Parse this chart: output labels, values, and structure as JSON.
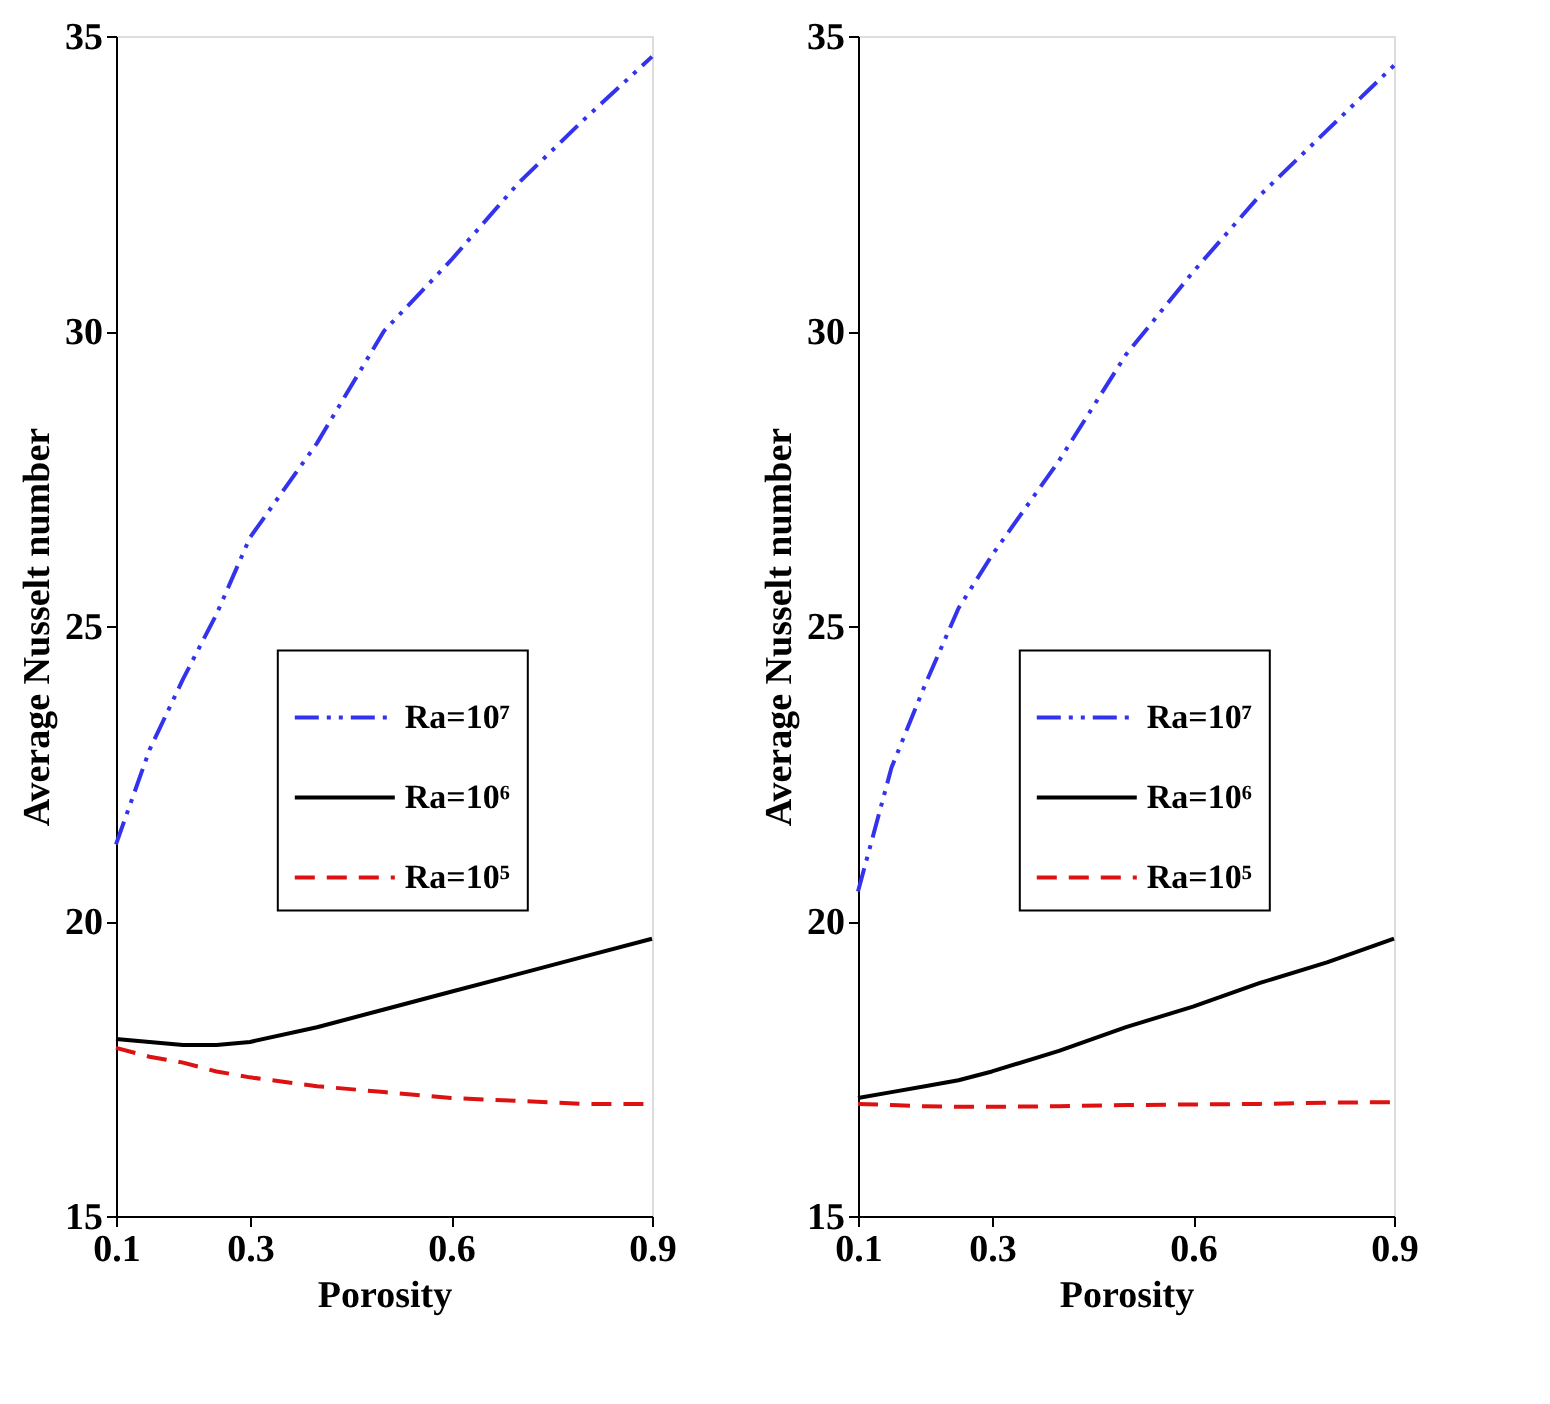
{
  "chart_data": [
    {
      "type": "line",
      "xlabel": "Porosity",
      "ylabel": "Average Nusselt number",
      "xlim": [
        0.1,
        0.9
      ],
      "ylim": [
        15,
        35
      ],
      "xticks": [
        0.1,
        0.3,
        0.6,
        0.9
      ],
      "yticks": [
        15,
        20,
        25,
        30,
        35
      ],
      "legend": "right",
      "x": [
        0.1,
        0.15,
        0.2,
        0.25,
        0.3,
        0.4,
        0.5,
        0.6,
        0.7,
        0.8,
        0.9
      ],
      "series": [
        {
          "name": "Ra=10⁷",
          "color": "#3333ee",
          "line_style": "dashdot",
          "values": [
            21.3,
            22.9,
            24.1,
            25.2,
            26.5,
            28.1,
            30.0,
            31.2,
            32.5,
            33.6,
            34.65
          ]
        },
        {
          "name": "Ra=10⁶",
          "color": "#000000",
          "line_style": "solid",
          "values": [
            18.0,
            17.95,
            17.9,
            17.9,
            17.95,
            18.2,
            18.5,
            18.8,
            19.1,
            19.4,
            19.7
          ]
        },
        {
          "name": "Ra=10⁵",
          "color": "#dd1111",
          "line_style": "dashed",
          "values": [
            17.85,
            17.7,
            17.6,
            17.45,
            17.35,
            17.2,
            17.1,
            17.0,
            16.95,
            16.9,
            16.9
          ]
        }
      ]
    },
    {
      "type": "line",
      "xlabel": "Porosity",
      "ylabel": "Average Nusselt number",
      "xlim": [
        0.1,
        0.9
      ],
      "ylim": [
        15,
        35
      ],
      "xticks": [
        0.1,
        0.3,
        0.6,
        0.9
      ],
      "yticks": [
        15,
        20,
        25,
        30,
        35
      ],
      "legend": "right",
      "x": [
        0.1,
        0.15,
        0.2,
        0.25,
        0.3,
        0.4,
        0.5,
        0.6,
        0.7,
        0.8,
        0.9
      ],
      "series": [
        {
          "name": "Ra=10⁷",
          "color": "#3333ee",
          "line_style": "dashdot",
          "values": [
            20.5,
            22.6,
            24.0,
            25.3,
            26.2,
            27.8,
            29.6,
            31.0,
            32.3,
            33.4,
            34.5
          ]
        },
        {
          "name": "Ra=10⁶",
          "color": "#000000",
          "line_style": "solid",
          "values": [
            17.0,
            17.1,
            17.2,
            17.3,
            17.45,
            17.8,
            18.2,
            18.55,
            18.95,
            19.3,
            19.7
          ]
        },
        {
          "name": "Ra=10⁵",
          "color": "#dd1111",
          "line_style": "dashed",
          "values": [
            16.9,
            16.88,
            16.86,
            16.85,
            16.85,
            16.86,
            16.88,
            16.89,
            16.9,
            16.92,
            16.93
          ]
        }
      ]
    }
  ]
}
